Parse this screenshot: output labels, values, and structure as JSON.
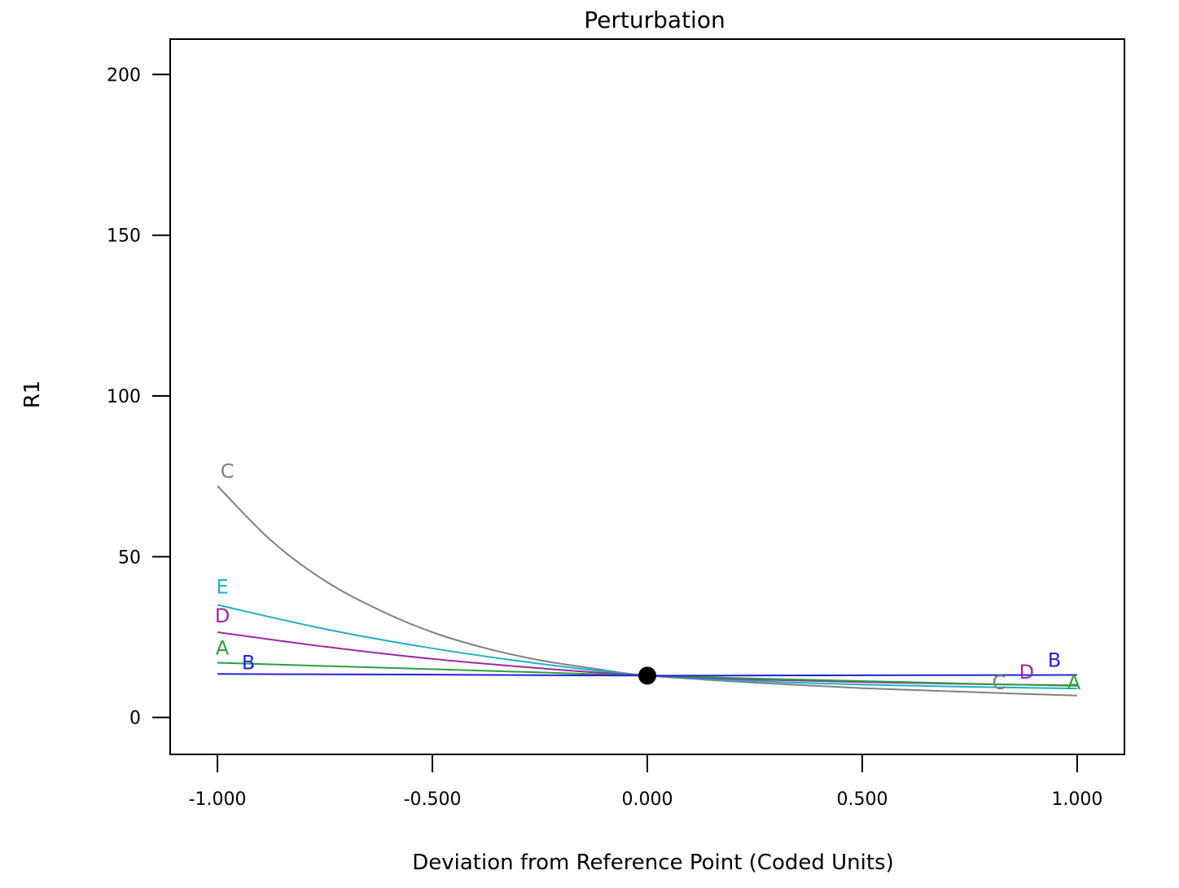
{
  "chart_data": {
    "type": "line",
    "title": "Perturbation",
    "xlabel": "Deviation from Reference Point (Coded Units)",
    "ylabel": "R1",
    "xlim": [
      -1.11,
      1.11
    ],
    "ylim": [
      -11.5,
      211
    ],
    "x_ticks": [
      -1.0,
      -0.5,
      0.0,
      0.5,
      1.0
    ],
    "x_tick_labels": [
      "-1.000",
      "-0.500",
      "0.000",
      "0.500",
      "1.000"
    ],
    "y_ticks": [
      0,
      50,
      100,
      150,
      200
    ],
    "y_tick_labels": [
      "0",
      "50",
      "100",
      "150",
      "200"
    ],
    "grid": false,
    "legend": "none",
    "reference_point": {
      "x": 0.0,
      "y": 13.0,
      "color": "#000000"
    },
    "series": [
      {
        "name": "A",
        "color": "#2e9e3e",
        "x": [
          -1.0,
          -0.75,
          -0.5,
          -0.25,
          0.0,
          0.25,
          0.5,
          0.75,
          1.0
        ],
        "y": [
          17.0,
          16.0,
          15.0,
          14.0,
          13.0,
          12.1,
          11.3,
          10.5,
          9.8
        ]
      },
      {
        "name": "B",
        "color": "#2222dd",
        "x": [
          -1.0,
          -0.75,
          -0.5,
          -0.25,
          0.0,
          0.25,
          0.5,
          0.75,
          1.0
        ],
        "y": [
          13.5,
          13.4,
          13.3,
          13.15,
          13.0,
          13.05,
          13.1,
          13.15,
          13.2
        ]
      },
      {
        "name": "C",
        "color": "#808080",
        "x": [
          -1.0,
          -0.875,
          -0.75,
          -0.625,
          -0.5,
          -0.375,
          -0.25,
          -0.125,
          0.0,
          0.25,
          0.5,
          0.75,
          1.0
        ],
        "y": [
          72.0,
          55.0,
          42.5,
          33.5,
          26.5,
          21.5,
          17.8,
          15.2,
          13.0,
          10.8,
          9.1,
          7.9,
          6.8
        ]
      },
      {
        "name": "D",
        "color": "#9b2aa0",
        "x": [
          -1.0,
          -0.75,
          -0.5,
          -0.25,
          0.0,
          0.25,
          0.5,
          0.75,
          1.0
        ],
        "y": [
          26.5,
          22.0,
          18.2,
          15.3,
          13.0,
          11.8,
          11.0,
          10.4,
          10.0
        ]
      },
      {
        "name": "E",
        "color": "#1fb0c4",
        "x": [
          -1.0,
          -0.75,
          -0.5,
          -0.25,
          0.0,
          0.25,
          0.5,
          0.75,
          1.0
        ],
        "y": [
          35.0,
          27.5,
          21.5,
          16.7,
          13.0,
          11.3,
          10.2,
          9.5,
          9.0
        ]
      }
    ]
  }
}
